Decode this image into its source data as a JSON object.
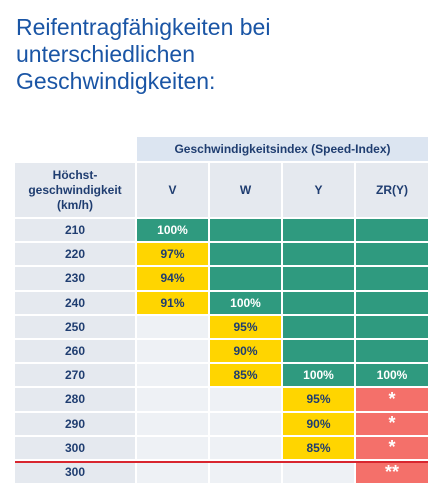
{
  "title_lines": [
    "Reifentragfähigkeiten bei",
    "unterschiedlichen",
    "Geschwindigkeiten:"
  ],
  "table": {
    "group_header": "Geschwindigkeitsindex (Speed-Index)",
    "row_header_lines": [
      "Höchst-",
      "geschwindigkeit",
      "(km/h)"
    ],
    "columns": [
      "V",
      "W",
      "Y",
      "ZR(Y)"
    ],
    "rows": [
      {
        "speed": "210",
        "cells": [
          {
            "text": "100%",
            "fill": "#2f9a7f"
          },
          {
            "fill": "#2f9a7f"
          },
          {
            "fill": "#2f9a7f"
          },
          {
            "fill": "#2f9a7f"
          }
        ]
      },
      {
        "speed": "220",
        "cells": [
          {
            "text": "97%",
            "fill": "#ffd500"
          },
          {
            "fill": "#2f9a7f"
          },
          {
            "fill": "#2f9a7f"
          },
          {
            "fill": "#2f9a7f"
          }
        ]
      },
      {
        "speed": "230",
        "cells": [
          {
            "text": "94%",
            "fill": "#ffd500"
          },
          {
            "fill": "#2f9a7f"
          },
          {
            "fill": "#2f9a7f"
          },
          {
            "fill": "#2f9a7f"
          }
        ]
      },
      {
        "speed": "240",
        "cells": [
          {
            "text": "91%",
            "fill": "#ffd500"
          },
          {
            "text": "100%",
            "fill": "#2f9a7f"
          },
          {
            "fill": "#2f9a7f"
          },
          {
            "fill": "#2f9a7f"
          }
        ]
      },
      {
        "speed": "250",
        "cells": [
          {
            "fill": "#eef1f5"
          },
          {
            "text": "95%",
            "fill": "#ffd500"
          },
          {
            "fill": "#2f9a7f"
          },
          {
            "fill": "#2f9a7f"
          }
        ]
      },
      {
        "speed": "260",
        "cells": [
          {
            "fill": "#eef1f5"
          },
          {
            "text": "90%",
            "fill": "#ffd500"
          },
          {
            "fill": "#2f9a7f"
          },
          {
            "fill": "#2f9a7f"
          }
        ]
      },
      {
        "speed": "270",
        "cells": [
          {
            "fill": "#eef1f5"
          },
          {
            "text": "85%",
            "fill": "#ffd500"
          },
          {
            "text": "100%",
            "fill": "#2f9a7f"
          },
          {
            "text": "100%",
            "fill": "#2f9a7f"
          }
        ]
      },
      {
        "speed": "280",
        "cells": [
          {
            "fill": "#eef1f5"
          },
          {
            "fill": "#eef1f5"
          },
          {
            "text": "95%",
            "fill": "#ffd500"
          },
          {
            "text": "*",
            "fill": "#f4706a"
          }
        ]
      },
      {
        "speed": "290",
        "cells": [
          {
            "fill": "#eef1f5"
          },
          {
            "fill": "#eef1f5"
          },
          {
            "text": "90%",
            "fill": "#ffd500"
          },
          {
            "text": "*",
            "fill": "#f4706a"
          }
        ]
      },
      {
        "speed": "300",
        "cells": [
          {
            "fill": "#eef1f5"
          },
          {
            "fill": "#eef1f5"
          },
          {
            "text": "85%",
            "fill": "#ffd500"
          },
          {
            "text": "*",
            "fill": "#f4706a"
          }
        ]
      },
      {
        "speed": "300",
        "cells": [
          {
            "fill": "#eef1f5"
          },
          {
            "fill": "#eef1f5"
          },
          {
            "fill": "#eef1f5"
          },
          {
            "text": "**",
            "fill": "#f4706a"
          }
        ]
      }
    ]
  }
}
